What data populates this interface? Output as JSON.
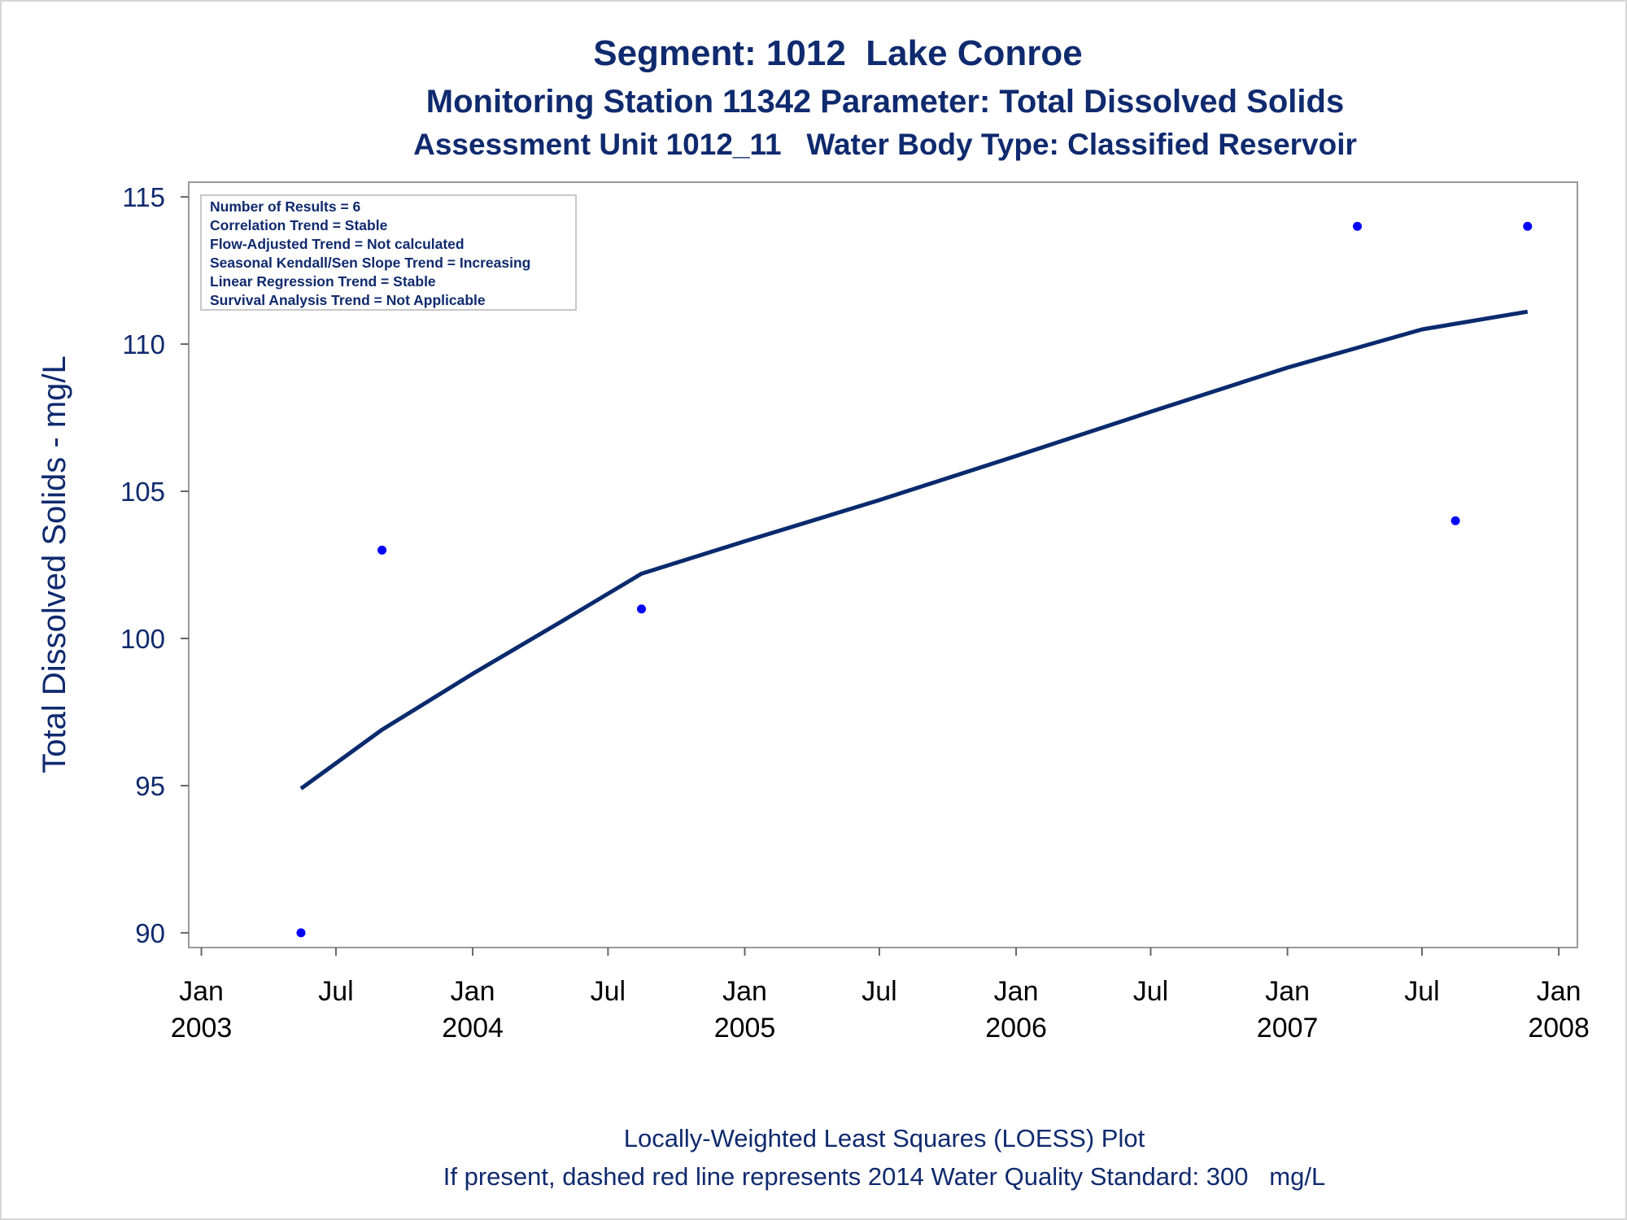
{
  "chart_data": {
    "type": "scatter",
    "title": "Segment: 1012  Lake Conroe",
    "subtitle": "Monitoring Station 11342 Parameter: Total Dissolved Solids",
    "subtitle2": "Assessment Unit 1012_11   Water Body Type: Classified Reservoir",
    "ylabel": "Total Dissolved Solids - mg/L",
    "xlabel": "",
    "ylim": [
      89.5,
      115.5
    ],
    "xlim": [
      "2002-12-15",
      "2008-01-26"
    ],
    "yticks": [
      90,
      95,
      100,
      105,
      110,
      115
    ],
    "xticks": [
      {
        "date": "2003-01-01",
        "label1": "Jan",
        "label2": "2003"
      },
      {
        "date": "2003-07-01",
        "label1": "Jul",
        "label2": ""
      },
      {
        "date": "2004-01-01",
        "label1": "Jan",
        "label2": "2004"
      },
      {
        "date": "2004-07-01",
        "label1": "Jul",
        "label2": ""
      },
      {
        "date": "2005-01-01",
        "label1": "Jan",
        "label2": "2005"
      },
      {
        "date": "2005-07-01",
        "label1": "Jul",
        "label2": ""
      },
      {
        "date": "2006-01-01",
        "label1": "Jan",
        "label2": "2006"
      },
      {
        "date": "2006-07-01",
        "label1": "Jul",
        "label2": ""
      },
      {
        "date": "2007-01-01",
        "label1": "Jan",
        "label2": "2007"
      },
      {
        "date": "2007-07-01",
        "label1": "Jul",
        "label2": ""
      },
      {
        "date": "2008-01-01",
        "label1": "Jan",
        "label2": "2008"
      }
    ],
    "series": [
      {
        "kind": "points",
        "color": "#0000ff",
        "points": [
          {
            "x": "2003-05-15",
            "y": 90
          },
          {
            "x": "2003-09-01",
            "y": 103
          },
          {
            "x": "2004-08-15",
            "y": 101
          },
          {
            "x": "2007-04-05",
            "y": 114
          },
          {
            "x": "2007-08-15",
            "y": 104
          },
          {
            "x": "2007-11-20",
            "y": 114
          }
        ]
      },
      {
        "kind": "line",
        "color": "#0a2a6e",
        "points": [
          {
            "x": "2003-05-15",
            "y": 94.9
          },
          {
            "x": "2003-09-01",
            "y": 96.9
          },
          {
            "x": "2004-01-01",
            "y": 98.8
          },
          {
            "x": "2004-05-01",
            "y": 100.6
          },
          {
            "x": "2004-08-15",
            "y": 102.2
          },
          {
            "x": "2005-01-01",
            "y": 103.3
          },
          {
            "x": "2005-07-01",
            "y": 104.7
          },
          {
            "x": "2006-01-01",
            "y": 106.2
          },
          {
            "x": "2006-07-01",
            "y": 107.7
          },
          {
            "x": "2007-01-01",
            "y": 109.2
          },
          {
            "x": "2007-07-01",
            "y": 110.5
          },
          {
            "x": "2007-11-20",
            "y": 111.1
          }
        ]
      }
    ],
    "grid": false,
    "inset_lines": [
      "Number of Results = 6",
      "Correlation Trend = Stable",
      "Flow-Adjusted Trend = Not calculated",
      "Seasonal Kendall/Sen Slope Trend = Increasing",
      "Linear Regression Trend = Stable",
      "Survival Analysis Trend = Not Applicable"
    ],
    "footnote1": "Locally-Weighted Least Squares (LOESS) Plot",
    "footnote2": "If present, dashed red line represents 2014 Water Quality Standard: 300   mg/L"
  }
}
